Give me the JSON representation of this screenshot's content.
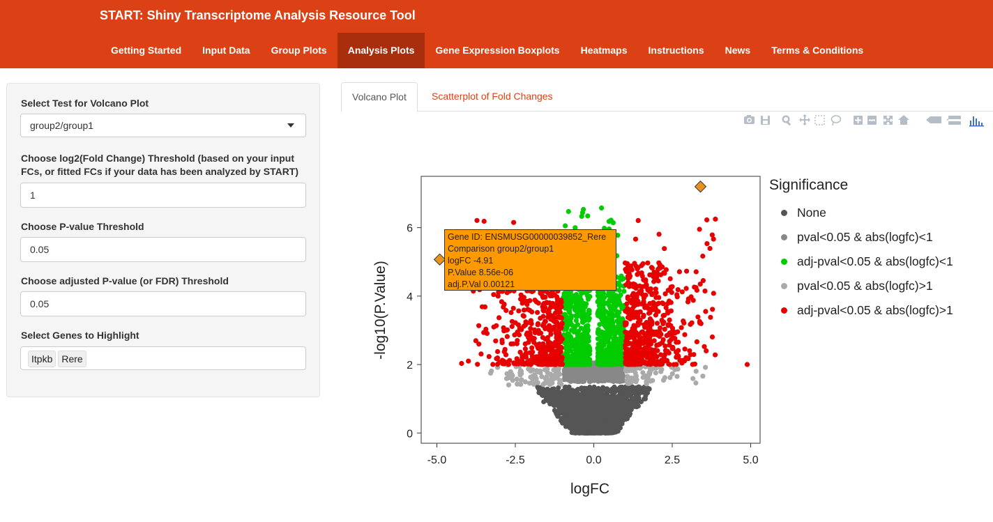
{
  "app": {
    "title": "START: Shiny Transcriptome Analysis Resource Tool"
  },
  "nav": {
    "items": [
      {
        "label": "Getting Started"
      },
      {
        "label": "Input Data"
      },
      {
        "label": "Group Plots"
      },
      {
        "label": "Analysis Plots",
        "active": true
      },
      {
        "label": "Gene Expression Boxplots"
      },
      {
        "label": "Heatmaps"
      },
      {
        "label": "Instructions"
      },
      {
        "label": "News"
      },
      {
        "label": "Terms & Conditions"
      }
    ]
  },
  "sidebar": {
    "test_label": "Select Test for Volcano Plot",
    "test_value": "group2/group1",
    "fc_label_line1": "Choose log2(Fold Change) Threshold (based on your input",
    "fc_label_line2": "FCs, or fitted FCs if your data has been analyzed by START)",
    "fc_value": "1",
    "pval_label": "Choose P-value Threshold",
    "pval_value": "0.05",
    "adjp_label": "Choose adjusted P-value (or FDR) Threshold",
    "adjp_value": "0.05",
    "genes_label": "Select Genes to Highlight",
    "genes": [
      "Itpkb",
      "Rere"
    ]
  },
  "tabs": {
    "active": "Volcano Plot",
    "inactive": "Scatterplot of Fold Changes"
  },
  "toolbar_icons": [
    "camera-icon",
    "save-icon",
    "zoom-icon",
    "pan-icon",
    "box-select-icon",
    "lasso-icon",
    "zoom-in-icon",
    "zoom-out-icon",
    "autoscale-icon",
    "reset-axes-icon",
    "hover-closest-icon",
    "hover-compare-icon",
    "plotly-logo-icon"
  ],
  "chart_data": {
    "type": "scatter",
    "xlabel": "logFC",
    "ylabel": "-log10(P.Value)",
    "xlim": [
      -5.5,
      5.3
    ],
    "ylim": [
      -0.3,
      7.5
    ],
    "x_ticks": [
      "-5.0",
      "-2.5",
      "0.0",
      "2.5",
      "5.0"
    ],
    "y_ticks": [
      "0",
      "2",
      "4",
      "6"
    ],
    "legend": {
      "title": "Significance",
      "placement": "right",
      "entries": [
        {
          "label": "None",
          "color": "#555555"
        },
        {
          "label": "pval<0.05 & abs(logfc)<1",
          "color": "#888888"
        },
        {
          "label": "adj-pval<0.05 & abs(logfc)<1",
          "color": "#00cc00"
        },
        {
          "label": "pval<0.05 & abs(logfc)>1",
          "color": "#aaaaaa"
        },
        {
          "label": "adj-pval<0.05 & abs(logfc)>1",
          "color": "#e60000"
        }
      ]
    },
    "highlighted": [
      {
        "gene": "Rere",
        "x": -4.91,
        "y": 5.07
      },
      {
        "gene": "Itpkb",
        "x": 3.4,
        "y": 7.2
      }
    ],
    "tooltip": {
      "line1": "Gene ID: ENSMUSG00000039852_Rere",
      "line2": "Comparison group2/group1",
      "line3": "logFC -4.91",
      "line4": "P.Value 8.56e-06",
      "line5": "adj.P.Val 0.00121"
    }
  }
}
